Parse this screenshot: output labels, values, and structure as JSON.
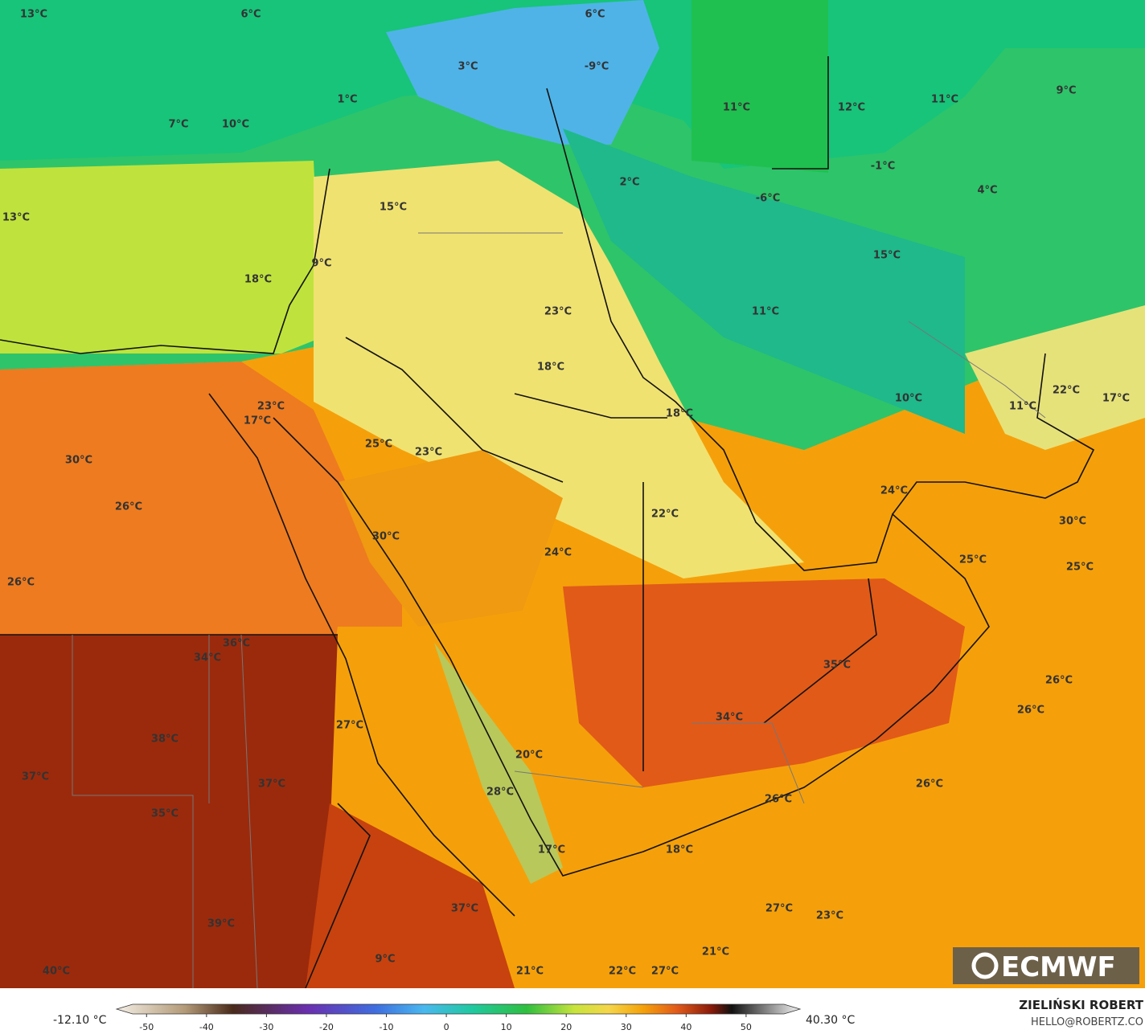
{
  "map": {
    "labels": [
      "13°C",
      "6°C",
      "6°C",
      "3°C",
      "-9°C",
      "1°C",
      "7°C",
      "10°C",
      "11°C",
      "12°C",
      "11°C",
      "9°C",
      "-1°C",
      "2°C",
      "-6°C",
      "4°C",
      "15°C",
      "13°C",
      "9°C",
      "18°C",
      "15°C",
      "23°C",
      "11°C",
      "18°C",
      "22°C",
      "17°C",
      "10°C",
      "11°C",
      "23°C",
      "17°C",
      "18°C",
      "25°C",
      "23°C",
      "30°C",
      "24°C",
      "26°C",
      "22°C",
      "30°C",
      "30°C",
      "24°C",
      "25°C",
      "25°C",
      "26°C",
      "36°C",
      "34°C",
      "35°C",
      "26°C",
      "26°C",
      "34°C",
      "27°C",
      "38°C",
      "20°C",
      "37°C",
      "37°C",
      "26°C",
      "28°C",
      "26°C",
      "35°C",
      "17°C",
      "18°C",
      "37°C",
      "27°C",
      "23°C",
      "39°C",
      "9°C",
      "21°C",
      "40°C",
      "21°C",
      "22°C",
      "27°C"
    ],
    "colorbar": {
      "ticks": [
        -50,
        -40,
        -30,
        -20,
        -10,
        0,
        10,
        20,
        30,
        40,
        50
      ],
      "lim": [
        -55,
        59
      ],
      "min_label": "-12.10 °C",
      "max_label": "40.30 °C"
    },
    "credit": "ZIELIŃSKI ROBERT",
    "email": "HELLO@ROBERTZ.CO",
    "logo": "ECMWF"
  }
}
